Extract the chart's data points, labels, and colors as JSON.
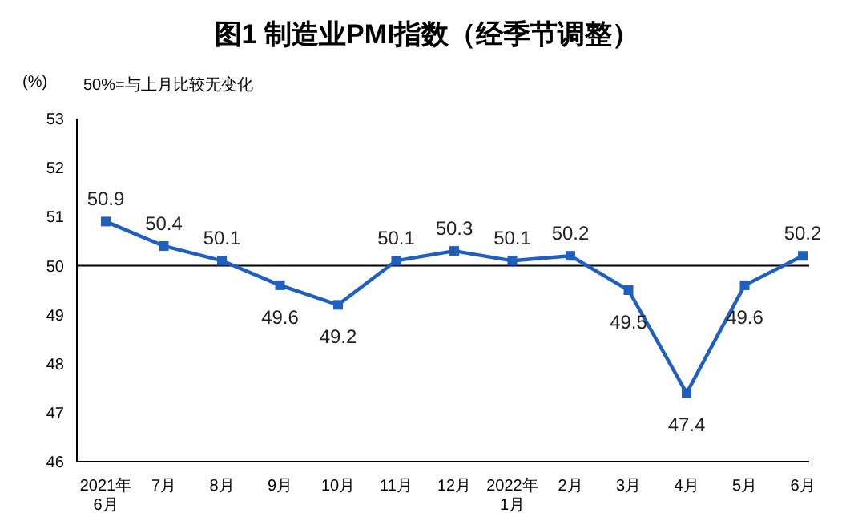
{
  "chart_data": {
    "type": "line",
    "title": "图1 制造业PMI指数（经季节调整）",
    "ylabel": "(%)",
    "annotations": [
      "50%=与上月比较无变化"
    ],
    "categories": [
      "2021年\n6月",
      "7月",
      "8月",
      "9月",
      "10月",
      "11月",
      "12月",
      "2022年\n1月",
      "2月",
      "3月",
      "4月",
      "5月",
      "6月"
    ],
    "series": [
      {
        "color": "#1f5fc0",
        "values": [
          50.9,
          50.4,
          50.1,
          49.6,
          49.2,
          50.1,
          50.3,
          50.1,
          50.2,
          49.5,
          47.4,
          49.6,
          50.2
        ]
      }
    ],
    "ylim": [
      46,
      53
    ],
    "yticks": [
      46,
      47,
      48,
      49,
      50,
      51,
      52,
      53
    ],
    "ref_lines": [
      {
        "axis": "y",
        "value": 50,
        "color": "#000000"
      }
    ],
    "data_labels": true,
    "marker": "square",
    "line_style": "solid",
    "grid": false,
    "legend": false
  }
}
